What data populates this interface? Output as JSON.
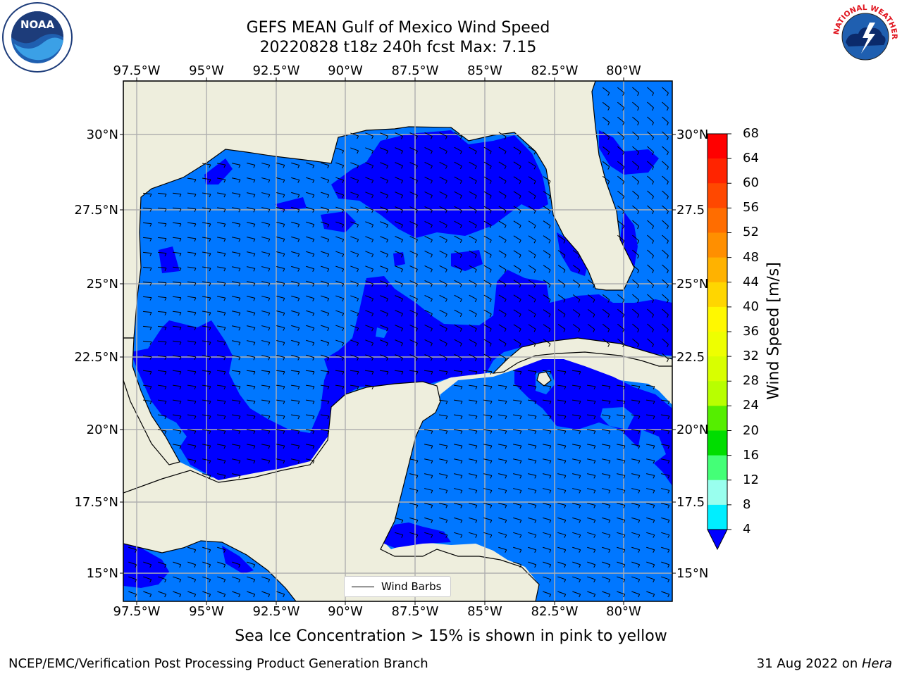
{
  "title": {
    "line1": "GEFS MEAN Gulf of Mexico Wind Speed",
    "line2": "20220828 t18z 240h fcst   Max: 7.15"
  },
  "map": {
    "lon_labels": [
      "97.5°W",
      "95°W",
      "92.5°W",
      "90°W",
      "87.5°W",
      "85°W",
      "82.5°W",
      "80°W"
    ],
    "lat_labels_left": [
      "30°N",
      "27.5°N",
      "25°N",
      "22.5°N",
      "20°N",
      "17.5°N",
      "15°N"
    ],
    "lat_labels_right": [
      "30°N",
      "27.5",
      "25°N",
      "22.5",
      "20°N",
      "17.5",
      "15°N"
    ],
    "legend_label": "Wind Barbs",
    "colors": {
      "land": "#eeeedd",
      "wind_4_8": "#0077ff",
      "wind_below_4": "#0000ff",
      "grid": "#b0b0b0"
    }
  },
  "colorbar": {
    "title": "Wind Speed [m/s]",
    "ticks": [
      "68",
      "64",
      "60",
      "56",
      "52",
      "48",
      "44",
      "40",
      "36",
      "32",
      "28",
      "24",
      "20",
      "16",
      "12",
      "8",
      "4"
    ],
    "colors": [
      "#ff0000",
      "#ff2400",
      "#ff4800",
      "#ff6d00",
      "#ff8f00",
      "#ffb200",
      "#ffd600",
      "#fff800",
      "#eeff00",
      "#d8ff00",
      "#b8ff00",
      "#55ee00",
      "#00dd00",
      "#44ff77",
      "#99ffee",
      "#44ffff",
      "#00eeff",
      "#0077ff"
    ]
  },
  "caption": "Sea Ice Concentration > 15% is shown in pink to yellow",
  "footer": {
    "left": "NCEP/EMC/Verification Post Processing Product Generation Branch",
    "date": "31 Aug 2022 on ",
    "host": "Hera"
  },
  "logos": {
    "noaa": "NOAA",
    "nws": "NATIONAL WEATHER SERVICE"
  }
}
